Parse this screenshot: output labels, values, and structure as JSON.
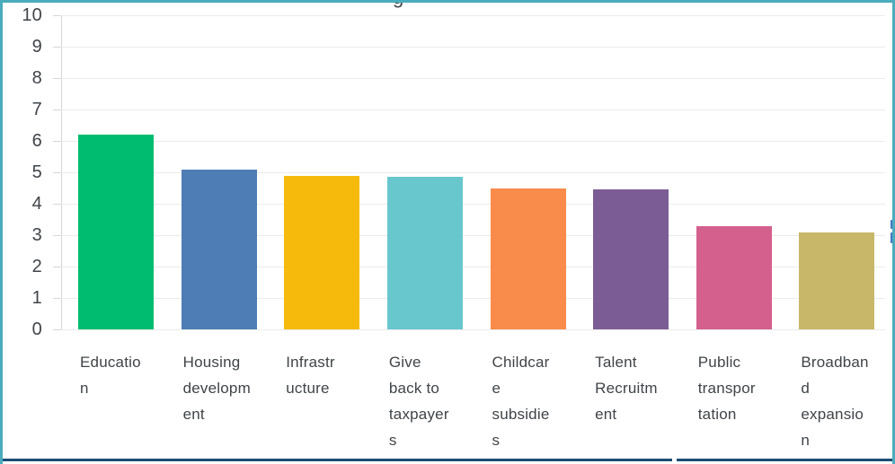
{
  "frame": {
    "cropped_title_visible_text": "g"
  },
  "theme": {
    "border_teal": "#4aacbc",
    "bottom_navy": "#1b4e75",
    "cropped_blue": "#4477c4",
    "text": "#3f4449",
    "gridline": "#ebebeb",
    "axis_line": "#d6d6d6",
    "background": "#ffffff"
  },
  "chart_data": {
    "type": "bar",
    "title": "",
    "xlabel": "",
    "ylabel": "",
    "categories": [
      "Education",
      "Housing development",
      "Infrastructure",
      "Give back to taxpayers",
      "Childcare subsidies",
      "Talent Recruitment",
      "Public transportation",
      "Broadband expansion"
    ],
    "categories_wrapped": [
      [
        "Educatio",
        "n"
      ],
      [
        "Housing",
        "developm",
        "ent"
      ],
      [
        "Infrastr",
        "ucture"
      ],
      [
        "Give",
        "back to",
        "taxpayer",
        "s"
      ],
      [
        "Childcar",
        "e",
        "subsidie",
        "s"
      ],
      [
        "Talent",
        "Recruitm",
        "ent"
      ],
      [
        "Public",
        "transpor",
        "tation"
      ],
      [
        "Broadban",
        "d",
        "expansio",
        "n"
      ]
    ],
    "values": [
      6.2,
      5.1,
      4.9,
      4.85,
      4.5,
      4.45,
      3.3,
      3.1
    ],
    "bar_colors": [
      "#00bc70",
      "#4e7db6",
      "#f5ba0c",
      "#68c7cd",
      "#f98b4b",
      "#7c5c95",
      "#d4608e",
      "#c8b769"
    ],
    "ylim": [
      0,
      10
    ],
    "ytick_interval": 1,
    "ytick_labels": [
      "0",
      "1",
      "2",
      "3",
      "4",
      "5",
      "6",
      "7",
      "8",
      "9",
      "10"
    ],
    "grid": true,
    "legend": false
  }
}
